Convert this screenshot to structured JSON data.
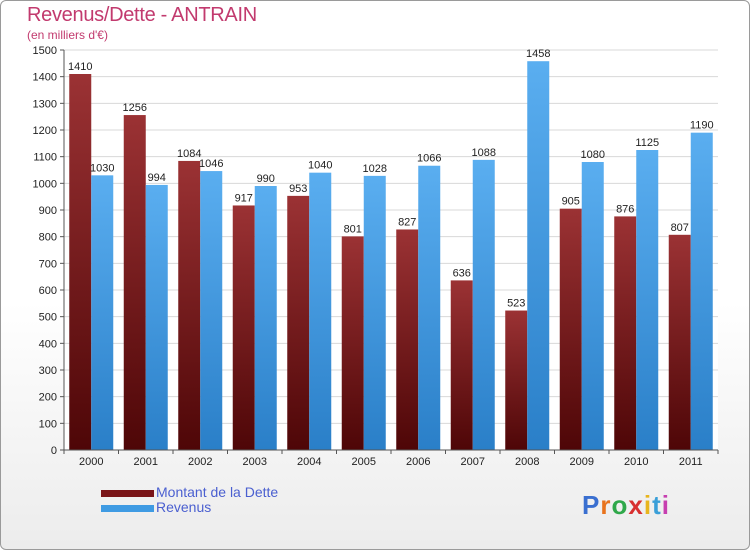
{
  "title": "Revenus/Dette - ANTRAIN",
  "subtitle": "(en milliers d'€)",
  "logo_text": "Proxiti",
  "chart_data": {
    "type": "bar",
    "categories": [
      "2000",
      "2001",
      "2002",
      "2003",
      "2004",
      "2005",
      "2006",
      "2007",
      "2008",
      "2009",
      "2010",
      "2011"
    ],
    "series": [
      {
        "name": "Montant de la Dette",
        "color": "#7a1518",
        "values": [
          1410,
          1256,
          1084,
          917,
          953,
          801,
          827,
          636,
          523,
          905,
          876,
          807
        ]
      },
      {
        "name": "Revenus",
        "color": "#3f9be3",
        "values": [
          1030,
          994,
          1046,
          990,
          1040,
          1028,
          1066,
          1088,
          1458,
          1080,
          1125,
          1190
        ]
      }
    ],
    "y_ticks": [
      0,
      100,
      200,
      300,
      400,
      500,
      600,
      700,
      800,
      900,
      1000,
      1100,
      1200,
      1300,
      1400,
      1500
    ],
    "ylim": [
      0,
      1500
    ],
    "legend_position": "bottom-left"
  }
}
